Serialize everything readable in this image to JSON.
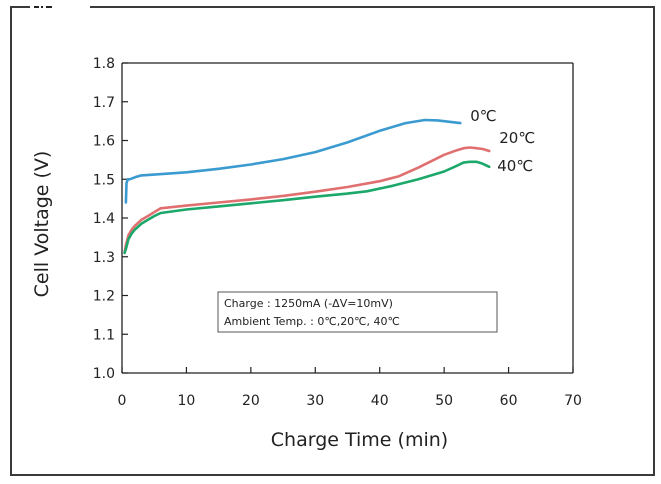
{
  "chart_data": {
    "type": "line",
    "xlabel": "Charge Time (min)",
    "ylabel": "Cell Voltage (V)",
    "xlim": [
      0,
      70
    ],
    "ylim": [
      1.0,
      1.8
    ],
    "xticks": [
      "0",
      "10",
      "20",
      "30",
      "40",
      "50",
      "60",
      "70"
    ],
    "yticks": [
      "1.0",
      "1.1",
      "1.2",
      "1.3",
      "1.4",
      "1.5",
      "1.6",
      "1.7",
      "1.8"
    ],
    "grid": false,
    "annotation": [
      "Charge : 1250mA (-ΔV=10mV)",
      "Ambient Temp. : 0℃,20℃, 40℃"
    ],
    "series": [
      {
        "name": "0℃",
        "color": "#3b9bd0",
        "x": [
          0.6,
          0.7,
          0.9,
          1.2,
          2,
          3,
          5,
          10,
          15,
          20,
          25,
          30,
          35,
          40,
          44,
          47,
          49,
          51,
          52.5
        ],
        "y": [
          1.44,
          1.49,
          1.5,
          1.5,
          1.505,
          1.51,
          1.512,
          1.518,
          1.527,
          1.538,
          1.552,
          1.57,
          1.595,
          1.625,
          1.645,
          1.653,
          1.652,
          1.648,
          1.645
        ]
      },
      {
        "name": "20℃",
        "color": "#e07070",
        "x": [
          0.4,
          0.6,
          1,
          1.5,
          2,
          3,
          4,
          5,
          6,
          10,
          15,
          20,
          25,
          30,
          35,
          40,
          43,
          46,
          50,
          52,
          53,
          54,
          55,
          56,
          57
        ],
        "y": [
          1.31,
          1.33,
          1.355,
          1.37,
          1.38,
          1.395,
          1.405,
          1.415,
          1.425,
          1.432,
          1.44,
          1.448,
          1.457,
          1.468,
          1.48,
          1.495,
          1.508,
          1.53,
          1.563,
          1.575,
          1.58,
          1.582,
          1.58,
          1.578,
          1.573
        ]
      },
      {
        "name": "40℃",
        "color": "#1ba86a",
        "x": [
          0.4,
          0.6,
          1,
          1.5,
          2,
          3,
          4,
          5,
          6,
          10,
          15,
          20,
          25,
          30,
          35,
          38,
          42,
          46,
          50,
          52,
          53,
          54,
          55,
          56,
          57
        ],
        "y": [
          1.31,
          1.32,
          1.345,
          1.36,
          1.37,
          1.385,
          1.395,
          1.405,
          1.413,
          1.422,
          1.43,
          1.438,
          1.446,
          1.455,
          1.463,
          1.469,
          1.483,
          1.5,
          1.52,
          1.535,
          1.543,
          1.545,
          1.545,
          1.54,
          1.532
        ]
      }
    ]
  }
}
